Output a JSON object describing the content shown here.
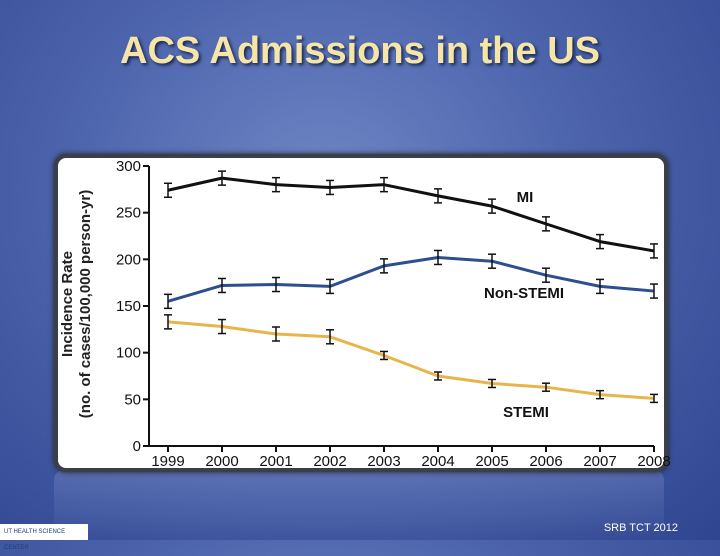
{
  "slide": {
    "title": "ACS Admissions in the US",
    "footer": "SRB TCT 2012",
    "logo_text": "UT HEALTH SCIENCE CENTER"
  },
  "chart_data": {
    "type": "line",
    "title": "",
    "ylabel": "Incidence Rate (no. of cases/100,000 person-yr)",
    "ylabel_line1": "Incidence Rate",
    "ylabel_line2": "(no. of cases/100,000 person-yr)",
    "xlabel": "",
    "x": [
      "1999",
      "2000",
      "2001",
      "2002",
      "2003",
      "2004",
      "2005",
      "2006",
      "2007",
      "2008"
    ],
    "ylim": [
      0,
      300
    ],
    "yticks": [
      "0",
      "50",
      "100",
      "150",
      "200",
      "250",
      "300"
    ],
    "grid": false,
    "error_bars": true,
    "series": [
      {
        "name": "MI",
        "color": "#111111",
        "values": [
          274,
          287,
          280,
          277,
          280,
          268,
          257,
          238,
          219,
          209
        ]
      },
      {
        "name": "Non-STEMI",
        "color": "#2d4f8f",
        "values": [
          155,
          172,
          173,
          171,
          193,
          202,
          198,
          183,
          171,
          166
        ]
      },
      {
        "name": "STEMI",
        "color": "#e8b54a",
        "values": [
          133,
          128,
          120,
          117,
          97,
          75,
          67,
          63,
          55,
          51
        ]
      }
    ]
  }
}
